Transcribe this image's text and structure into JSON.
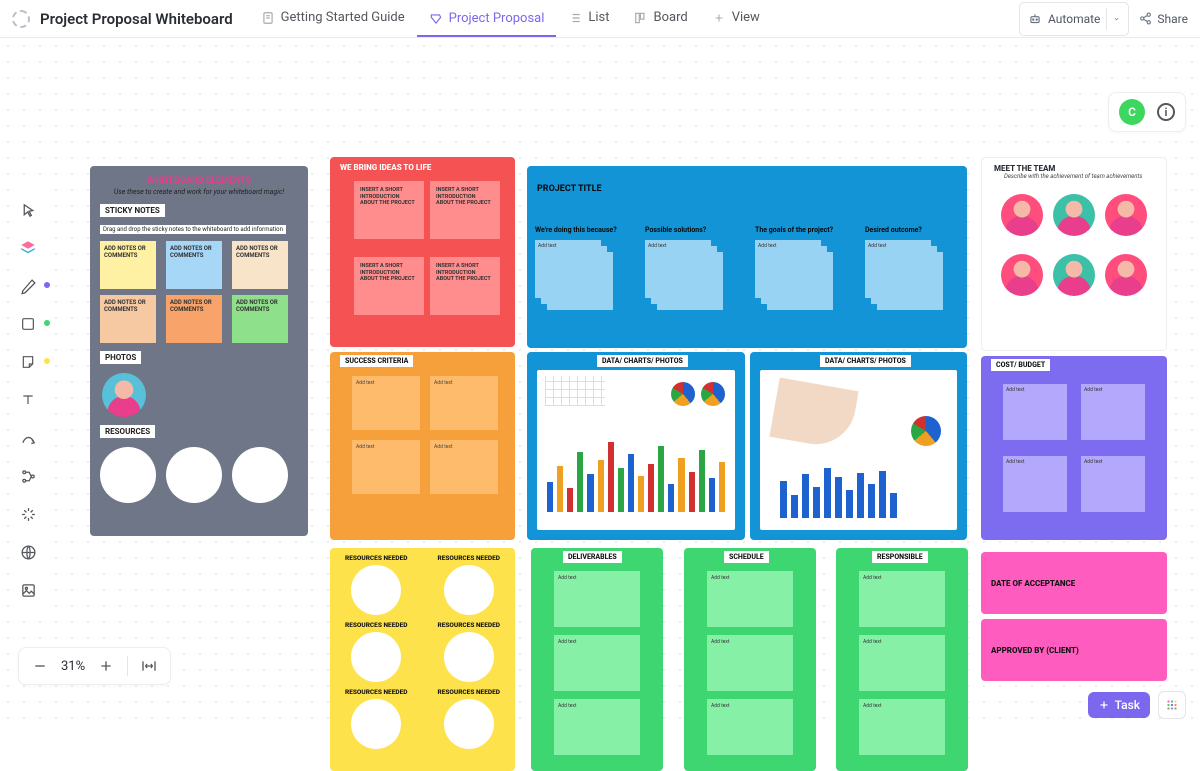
{
  "doc_title": "Project Proposal Whiteboard",
  "tabs": {
    "getting_started": "Getting Started Guide",
    "project_proposal": "Project Proposal",
    "list": "List",
    "board": "Board",
    "view": "View"
  },
  "topbar": {
    "automate": "Automate",
    "share": "Share"
  },
  "tr": {
    "avatar_letter": "C"
  },
  "zoom": {
    "value": "31%"
  },
  "br": {
    "task": "Task"
  },
  "colors": {
    "accent": "#7b68ee",
    "gray_panel": "#6e7687",
    "red_panel": "#f55353",
    "red_note": "#ff8d8d",
    "blue_panel": "#1394d6",
    "blue_note": "#99d3f4",
    "orange_panel": "#f5a03a",
    "orange_note": "#fdbb6b",
    "purple_panel": "#7d6cf0",
    "purple_note": "#b3a8fb",
    "yellow_panel": "#fde24b",
    "green_panel": "#3dd671",
    "green_note": "#86f0a7",
    "pink_panel": "#ff5cc0",
    "sticky_yellow": "#fff1a3",
    "sticky_blue": "#a7d7f7",
    "sticky_beige": "#f7e4c9",
    "sticky_peach": "#f7c9a3",
    "sticky_orange": "#f7a36a",
    "sticky_green": "#8fe08a"
  },
  "elements": {
    "header": "WHITEBOARD ELEMENTS",
    "sub": "Use these to create and work for your whiteboard magic!",
    "sticky_label": "STICKY NOTES",
    "sticky_hint": "Drag and drop the sticky notes to the whiteboard to add information",
    "sticky_text": "ADD NOTES OR COMMENTS",
    "photos_label": "PHOTOS",
    "resources_label": "RESOURCES"
  },
  "ideas": {
    "title": "WE BRING IDEAS TO LIFE",
    "note_text": "INSERT A SHORT INTRODUCTION ABOUT THE PROJECT"
  },
  "project": {
    "title": "PROJECT TITLE",
    "c1": "We're doing this because?",
    "c2": "Possible solutions?",
    "c3": "The goals of the project?",
    "c4": "Desired outcome?",
    "note_hint": "Add text"
  },
  "team": {
    "title": "MEET THE TEAM",
    "sub": "Describe with the achievement of team achievements"
  },
  "success": {
    "label": "SUCCESS CRITERIA",
    "note_hint": "Add text"
  },
  "data": {
    "label": "DATA/ CHARTS/ PHOTOS",
    "bars1": {
      "heights": [
        30,
        46,
        24,
        60,
        38,
        52,
        70,
        44,
        58,
        36,
        48,
        66,
        28,
        54,
        40,
        62,
        34,
        50
      ],
      "colors": [
        "#1e62d0",
        "#f0a020",
        "#d03030",
        "#2aa744",
        "#1e62d0",
        "#f0a020",
        "#d03030",
        "#2aa744",
        "#1e62d0",
        "#f0a020",
        "#d03030",
        "#2aa744",
        "#1e62d0",
        "#f0a020",
        "#d03030",
        "#2aa744",
        "#1e62d0",
        "#f0a020"
      ]
    },
    "bars2": {
      "heights": [
        48,
        30,
        56,
        40,
        64,
        52,
        36,
        58,
        44,
        60,
        32
      ],
      "colors": [
        "#1e62d0",
        "#1e62d0",
        "#1e62d0",
        "#1e62d0",
        "#1e62d0",
        "#1e62d0",
        "#1e62d0",
        "#1e62d0",
        "#1e62d0",
        "#1e62d0",
        "#1e62d0"
      ]
    }
  },
  "cost": {
    "label": "COST/ BUDGET",
    "note_hint": "Add text"
  },
  "resources": {
    "label": "RESOURCES NEEDED"
  },
  "lanes": {
    "deliverables": "DELIVERABLES",
    "schedule": "SCHEDULE",
    "responsible": "RESPONSIBLE",
    "note_hint": "Add text"
  },
  "pink": {
    "date": "DATE OF ACCEPTANCE",
    "approved": "APPROVED BY (CLIENT)"
  }
}
